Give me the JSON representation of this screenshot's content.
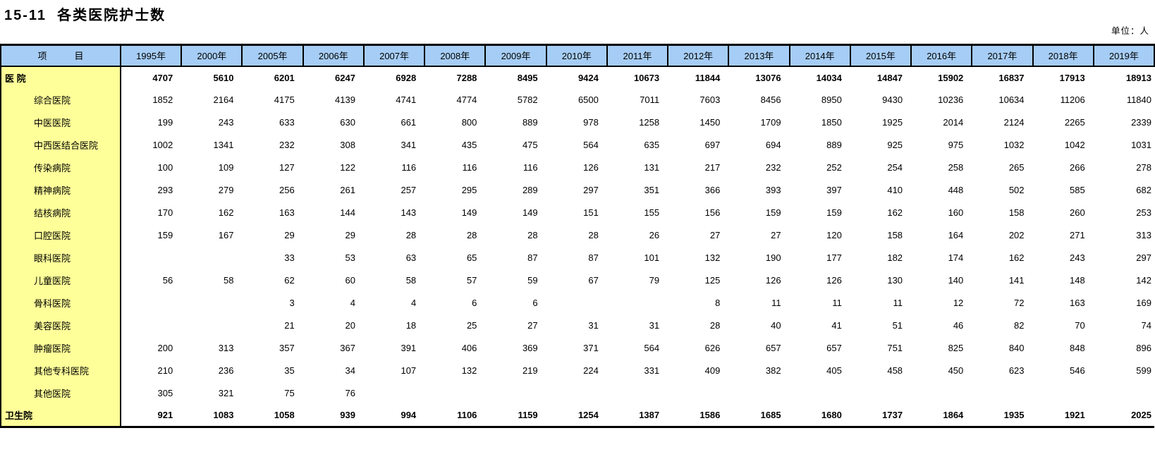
{
  "title": "15-11  各类医院护士数",
  "unit_note": "单位：人",
  "colors": {
    "header_bg": "#A6CDF5",
    "label_bg": "#FFFF99",
    "border": "#000000"
  },
  "table": {
    "item_header": "项　　　目",
    "columns": [
      "1995年",
      "2000年",
      "2005年",
      "2006年",
      "2007年",
      "2008年",
      "2009年",
      "2010年",
      "2011年",
      "2012年",
      "2013年",
      "2014年",
      "2015年",
      "2016年",
      "2017年",
      "2018年",
      "2019年"
    ],
    "rows": [
      {
        "label": "医 院",
        "bold": true,
        "indent": false,
        "values": [
          "4707",
          "5610",
          "6201",
          "6247",
          "6928",
          "7288",
          "8495",
          "9424",
          "10673",
          "11844",
          "13076",
          "14034",
          "14847",
          "15902",
          "16837",
          "17913",
          "18913"
        ]
      },
      {
        "label": "综合医院",
        "bold": false,
        "indent": true,
        "values": [
          "1852",
          "2164",
          "4175",
          "4139",
          "4741",
          "4774",
          "5782",
          "6500",
          "7011",
          "7603",
          "8456",
          "8950",
          "9430",
          "10236",
          "10634",
          "11206",
          "11840"
        ]
      },
      {
        "label": "中医医院",
        "bold": false,
        "indent": true,
        "values": [
          "199",
          "243",
          "633",
          "630",
          "661",
          "800",
          "889",
          "978",
          "1258",
          "1450",
          "1709",
          "1850",
          "1925",
          "2014",
          "2124",
          "2265",
          "2339"
        ]
      },
      {
        "label": "中西医结合医院",
        "bold": false,
        "indent": true,
        "values": [
          "1002",
          "1341",
          "232",
          "308",
          "341",
          "435",
          "475",
          "564",
          "635",
          "697",
          "694",
          "889",
          "925",
          "975",
          "1032",
          "1042",
          "1031"
        ]
      },
      {
        "label": "传染病院",
        "bold": false,
        "indent": true,
        "values": [
          "100",
          "109",
          "127",
          "122",
          "116",
          "116",
          "116",
          "126",
          "131",
          "217",
          "232",
          "252",
          "254",
          "258",
          "265",
          "266",
          "278"
        ]
      },
      {
        "label": "精神病院",
        "bold": false,
        "indent": true,
        "values": [
          "293",
          "279",
          "256",
          "261",
          "257",
          "295",
          "289",
          "297",
          "351",
          "366",
          "393",
          "397",
          "410",
          "448",
          "502",
          "585",
          "682"
        ]
      },
      {
        "label": "结核病院",
        "bold": false,
        "indent": true,
        "values": [
          "170",
          "162",
          "163",
          "144",
          "143",
          "149",
          "149",
          "151",
          "155",
          "156",
          "159",
          "159",
          "162",
          "160",
          "158",
          "260",
          "253"
        ]
      },
      {
        "label": "口腔医院",
        "bold": false,
        "indent": true,
        "values": [
          "159",
          "167",
          "29",
          "29",
          "28",
          "28",
          "28",
          "28",
          "26",
          "27",
          "27",
          "120",
          "158",
          "164",
          "202",
          "271",
          "313"
        ]
      },
      {
        "label": "眼科医院",
        "bold": false,
        "indent": true,
        "values": [
          "",
          "",
          "33",
          "53",
          "63",
          "65",
          "87",
          "87",
          "101",
          "132",
          "190",
          "177",
          "182",
          "174",
          "162",
          "243",
          "297"
        ]
      },
      {
        "label": "儿童医院",
        "bold": false,
        "indent": true,
        "values": [
          "56",
          "58",
          "62",
          "60",
          "58",
          "57",
          "59",
          "67",
          "79",
          "125",
          "126",
          "126",
          "130",
          "140",
          "141",
          "148",
          "142"
        ]
      },
      {
        "label": "骨科医院",
        "bold": false,
        "indent": true,
        "values": [
          "",
          "",
          "3",
          "4",
          "4",
          "6",
          "6",
          "",
          "",
          "8",
          "11",
          "11",
          "11",
          "12",
          "72",
          "163",
          "169"
        ]
      },
      {
        "label": "美容医院",
        "bold": false,
        "indent": true,
        "values": [
          "",
          "",
          "21",
          "20",
          "18",
          "25",
          "27",
          "31",
          "31",
          "28",
          "40",
          "41",
          "51",
          "46",
          "82",
          "70",
          "74"
        ]
      },
      {
        "label": "肿瘤医院",
        "bold": false,
        "indent": true,
        "values": [
          "200",
          "313",
          "357",
          "367",
          "391",
          "406",
          "369",
          "371",
          "564",
          "626",
          "657",
          "657",
          "751",
          "825",
          "840",
          "848",
          "896"
        ]
      },
      {
        "label": "其他专科医院",
        "bold": false,
        "indent": true,
        "values": [
          "210",
          "236",
          "35",
          "34",
          "107",
          "132",
          "219",
          "224",
          "331",
          "409",
          "382",
          "405",
          "458",
          "450",
          "623",
          "546",
          "599"
        ]
      },
      {
        "label": "其他医院",
        "bold": false,
        "indent": true,
        "values": [
          "305",
          "321",
          "75",
          "76",
          "",
          "",
          "",
          "",
          "",
          "",
          "",
          "",
          "",
          "",
          "",
          "",
          ""
        ]
      },
      {
        "label": "卫生院",
        "bold": true,
        "indent": false,
        "values": [
          "921",
          "1083",
          "1058",
          "939",
          "994",
          "1106",
          "1159",
          "1254",
          "1387",
          "1586",
          "1685",
          "1680",
          "1737",
          "1864",
          "1935",
          "1921",
          "2025"
        ]
      }
    ]
  }
}
